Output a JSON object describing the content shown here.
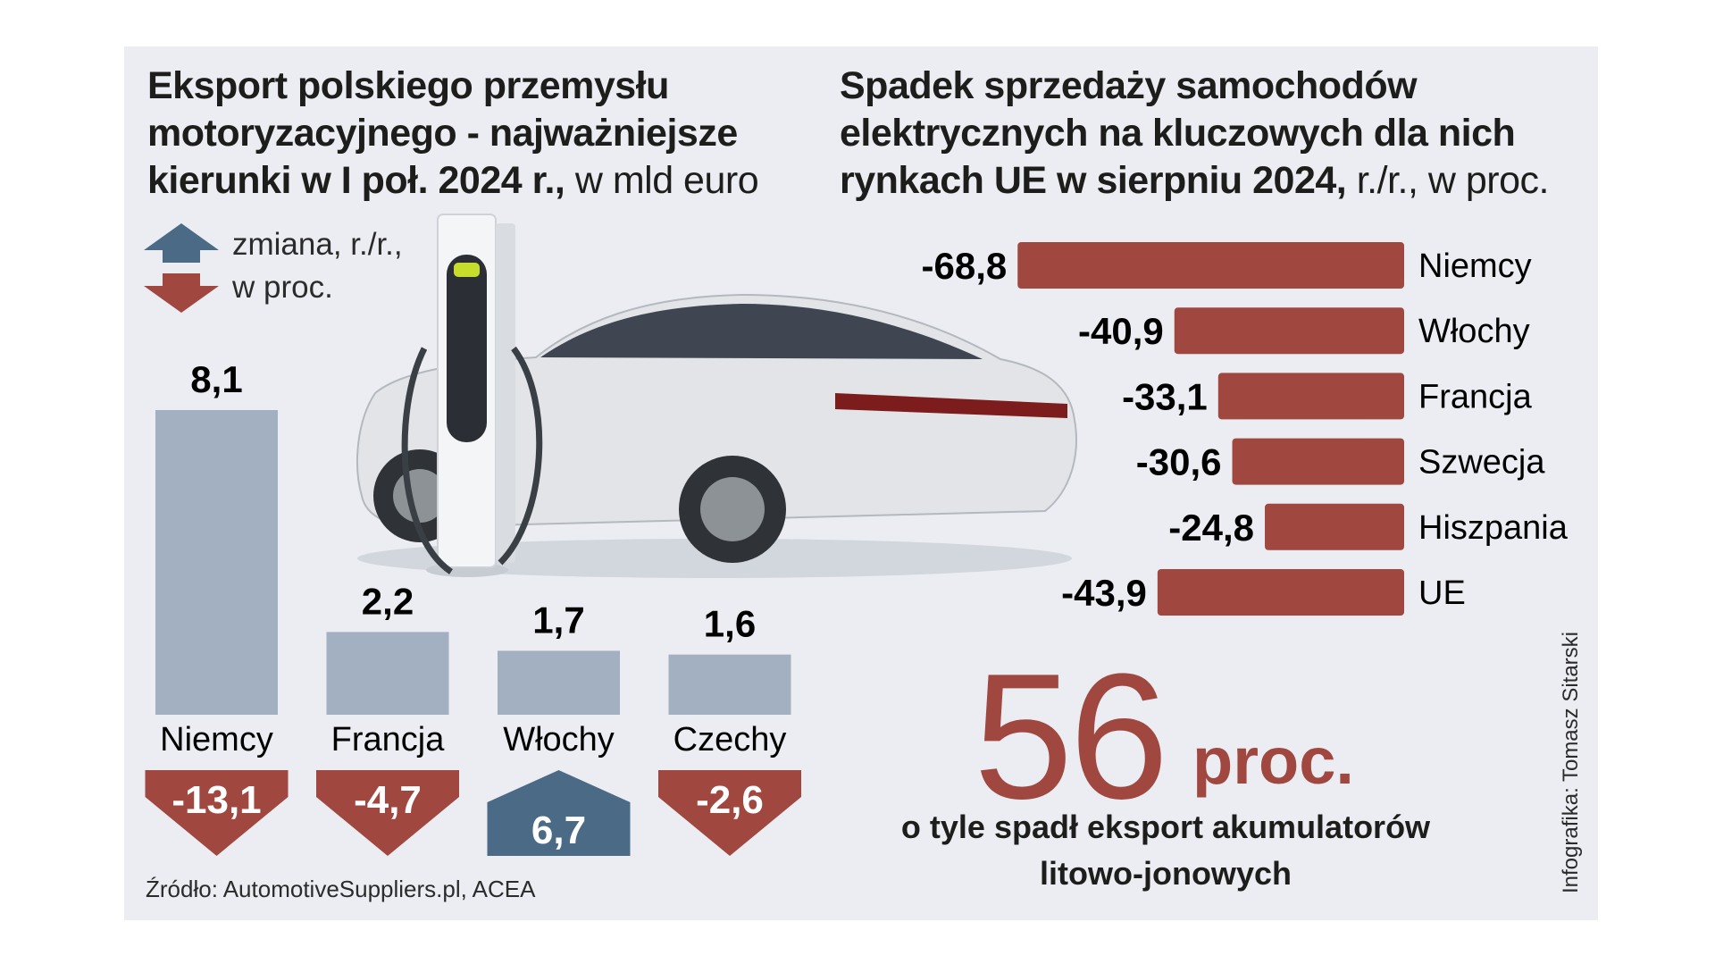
{
  "left_chart": {
    "title": "Eksport polskiego przemysłu motoryzacyjnego - najważniejsze kierunki w I poł. 2024 r.,",
    "unit": "w mld euro",
    "legend": "zmiana, r./r., w proc."
  },
  "right_chart": {
    "title": "Spadek sprzedaży samochodów elektrycznych na kluczowych dla nich rynkach UE w sierpniu 2024,",
    "unit": "r./r., w proc."
  },
  "highlight": {
    "number": "56",
    "unit": "proc.",
    "caption": "o tyle spadł eksport akumulatorów litowo-jonowych"
  },
  "source": "Źródło: AutomotiveSuppliers.pl, ACEA",
  "credit": "Infografika: Tomasz Sitarski",
  "colors": {
    "panel": "#ebedf2",
    "export_bar": "#a3b0c1",
    "decline_red": "#a04840",
    "increase_blue": "#4b6a85"
  },
  "chart_data": [
    {
      "type": "bar",
      "categories": [
        "Niemcy",
        "Francja",
        "Włochy",
        "Czechy"
      ],
      "values": [
        8.1,
        2.2,
        1.7,
        1.6
      ],
      "value_labels": [
        "8,1",
        "2,2",
        "1,7",
        "1,6"
      ],
      "change_pct": [
        -13.1,
        -4.7,
        6.7,
        -2.6
      ],
      "change_labels": [
        "-13,1",
        "-4,7",
        "6,7",
        "-2,6"
      ]
    },
    {
      "type": "bar",
      "orientation": "horizontal",
      "categories": [
        "Niemcy",
        "Włochy",
        "Francja",
        "Szwecja",
        "Hiszpania",
        "UE"
      ],
      "values": [
        -68.8,
        -40.9,
        -33.1,
        -30.6,
        -24.8,
        -43.9
      ],
      "value_labels": [
        "-68,8",
        "-40,9",
        "-33,1",
        "-30,6",
        "-24,8",
        "-43,9"
      ]
    }
  ]
}
